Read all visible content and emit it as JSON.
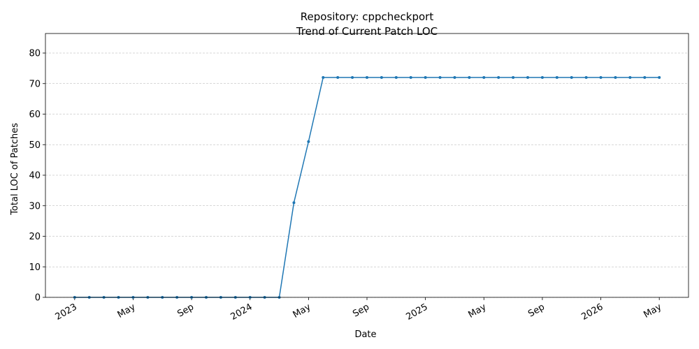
{
  "chart_data": {
    "type": "line",
    "title": "Repository: cppcheckport",
    "subtitle": "Trend of Current Patch LOC",
    "x_label": "Date",
    "y_label": "Total LOC of Patches",
    "x": [
      "2023-01",
      "2023-02",
      "2023-03",
      "2023-04",
      "2023-05",
      "2023-06",
      "2023-07",
      "2023-08",
      "2023-09",
      "2023-10",
      "2023-11",
      "2023-12",
      "2024-01",
      "2024-02",
      "2024-03",
      "2024-04",
      "2024-05",
      "2024-06",
      "2024-07",
      "2024-08",
      "2024-09",
      "2024-10",
      "2024-11",
      "2024-12",
      "2025-01",
      "2025-02",
      "2025-03",
      "2025-04",
      "2025-05",
      "2025-06",
      "2025-07",
      "2025-08",
      "2025-09",
      "2025-10",
      "2025-11",
      "2025-12",
      "2026-01",
      "2026-02",
      "2026-03",
      "2026-04",
      "2026-05"
    ],
    "series": [
      {
        "name": "Total LOC of Patches",
        "color": "#1f77b4",
        "values": [
          0,
          0,
          0,
          0,
          0,
          0,
          0,
          0,
          0,
          0,
          0,
          0,
          0,
          0,
          0,
          31,
          51,
          72,
          72,
          72,
          72,
          72,
          72,
          72,
          72,
          72,
          72,
          72,
          72,
          72,
          72,
          72,
          72,
          72,
          72,
          72,
          72,
          72,
          72,
          72,
          72
        ]
      }
    ],
    "xlim": [
      "2022-11",
      "2026-07"
    ],
    "xticks": [
      {
        "value": "2023-01",
        "label": "2023"
      },
      {
        "value": "2023-05",
        "label": "May"
      },
      {
        "value": "2023-09",
        "label": "Sep"
      },
      {
        "value": "2024-01",
        "label": "2024"
      },
      {
        "value": "2024-05",
        "label": "May"
      },
      {
        "value": "2024-09",
        "label": "Sep"
      },
      {
        "value": "2025-01",
        "label": "2025"
      },
      {
        "value": "2025-05",
        "label": "May"
      },
      {
        "value": "2025-09",
        "label": "Sep"
      },
      {
        "value": "2026-01",
        "label": "2026"
      },
      {
        "value": "2026-05",
        "label": "May"
      }
    ],
    "ylim": [
      0,
      86.4
    ],
    "yticks": [
      0,
      10,
      20,
      30,
      40,
      50,
      60,
      70,
      80
    ],
    "grid": "y"
  }
}
